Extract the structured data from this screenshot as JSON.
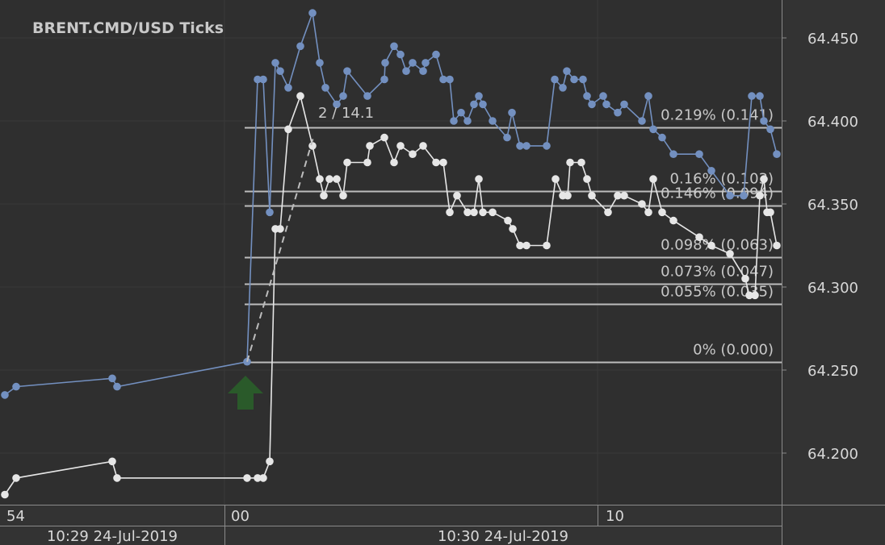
{
  "chart_data": {
    "type": "line",
    "title": "BRENT.CMD/USD  Ticks",
    "y_axis": {
      "ticks": [
        "64.450",
        "64.400",
        "64.350",
        "64.300",
        "64.250",
        "64.200"
      ],
      "tick_values": [
        64.45,
        64.4,
        64.35,
        64.3,
        64.25,
        64.2
      ],
      "ylim": [
        64.1705,
        64.4682
      ]
    },
    "x_axis": {
      "ticks": [
        "54",
        "00",
        "10"
      ],
      "date_labels": [
        "10:29 24-Jul-2019",
        "10:30 24-Jul-2019"
      ]
    },
    "measure_label": "2 / 14.1",
    "entry_marker": "up-arrow",
    "levels": [
      {
        "label": "0.219% (0.141)",
        "price": 64.396
      },
      {
        "label": "0.16% (0.103)",
        "price": 64.358
      },
      {
        "label": "0.146% (0.094)",
        "price": 64.349
      },
      {
        "label": "0.098% (0.063)",
        "price": 64.318
      },
      {
        "label": "0.073% (0.047)",
        "price": 64.302
      },
      {
        "label": "0.055% (0.035)",
        "price": 64.29
      },
      {
        "label": "0% (0.000)",
        "price": 64.255
      }
    ],
    "series": [
      {
        "color": "#7390c0",
        "values": [
          64.235,
          64.24,
          64.245,
          64.24,
          64.255,
          64.425,
          64.425,
          64.345,
          64.435,
          64.43,
          64.42,
          64.445,
          64.465,
          64.435,
          64.42,
          64.41,
          64.415,
          64.43,
          64.415,
          64.425,
          64.435,
          64.445,
          64.44,
          64.43,
          64.435,
          64.43,
          64.435,
          64.44,
          64.425,
          64.425,
          64.4,
          64.405,
          64.4,
          64.41,
          64.415,
          64.41,
          64.4,
          64.39,
          64.405,
          64.385,
          64.385,
          64.385,
          64.425,
          64.42,
          64.43,
          64.425,
          64.425,
          64.415,
          64.41,
          64.415,
          64.41,
          64.405,
          64.41,
          64.4,
          64.415,
          64.395,
          64.39,
          64.38,
          64.38,
          64.37,
          64.355,
          64.355,
          64.415,
          64.415,
          64.4,
          64.395,
          64.38
        ]
      },
      {
        "color": "#e6e6e6",
        "values": [
          64.175,
          64.185,
          64.195,
          64.185,
          64.185,
          64.185,
          64.185,
          64.195,
          64.335,
          64.335,
          64.395,
          64.415,
          64.385,
          64.365,
          64.355,
          64.365,
          64.365,
          64.355,
          64.375,
          64.375,
          64.385,
          64.39,
          64.375,
          64.385,
          64.38,
          64.385,
          64.375,
          64.375,
          64.345,
          64.355,
          64.345,
          64.345,
          64.365,
          64.345,
          64.345,
          64.34,
          64.335,
          64.325,
          64.325,
          64.325,
          64.365,
          64.355,
          64.355,
          64.375,
          64.375,
          64.365,
          64.355,
          64.345,
          64.355,
          64.355,
          64.35,
          64.345,
          64.365,
          64.345,
          64.34,
          64.33,
          64.325,
          64.32,
          64.305,
          64.295,
          64.295,
          64.355,
          64.365,
          64.345,
          64.345,
          64.325
        ]
      }
    ],
    "grid": true
  },
  "colors": {
    "background": "#2f2f2f",
    "grid": "#3a3a3a",
    "level_line": "#bdbdbd",
    "text": "#d0d0d0",
    "arrow": "#2a5a2a"
  }
}
